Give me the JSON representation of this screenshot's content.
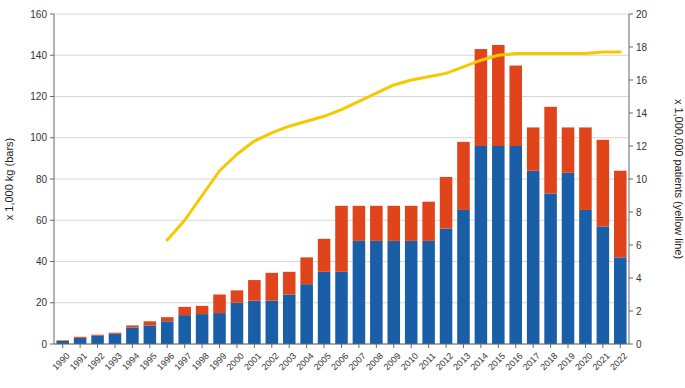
{
  "chart_data": {
    "type": "bar",
    "stacked": true,
    "grid": true,
    "x": [
      1990,
      1991,
      1992,
      1993,
      1994,
      1995,
      1996,
      1997,
      1998,
      1999,
      2000,
      2001,
      2002,
      2003,
      2004,
      2005,
      2006,
      2007,
      2008,
      2009,
      2010,
      2011,
      2012,
      2013,
      2014,
      2015,
      2016,
      2017,
      2018,
      2019,
      2020,
      2021,
      2022
    ],
    "xlim": [
      1989.5,
      2022.5
    ],
    "xticks": [
      1990,
      1991,
      1992,
      1993,
      1994,
      1995,
      1996,
      1997,
      1998,
      1999,
      2000,
      2001,
      2002,
      2003,
      2004,
      2005,
      2006,
      2007,
      2008,
      2009,
      2010,
      2011,
      2012,
      2013,
      2014,
      2015,
      2016,
      2017,
      2018,
      2019,
      2020,
      2021,
      2022
    ],
    "ylabel": "x 1,000 kg (bars)",
    "y2label": "x 1,000,000 patients (yellow line)",
    "ylim": [
      0,
      160
    ],
    "yticks": [
      0,
      20,
      40,
      60,
      80,
      100,
      120,
      140,
      160
    ],
    "y2lim": [
      0,
      20
    ],
    "y2ticks": [
      0,
      2,
      4,
      6,
      8,
      10,
      12,
      14,
      16,
      18,
      20
    ],
    "series": [
      {
        "type": "bar",
        "color": "#1a5ea8",
        "values": [
          1.5,
          3.0,
          4.0,
          5.0,
          8.0,
          9.0,
          11.0,
          14.0,
          14.5,
          15.0,
          20.0,
          21.0,
          21.0,
          24.0,
          29.0,
          35.0,
          35.0,
          50.0,
          50.0,
          50.0,
          50.0,
          50.0,
          56.0,
          65.0,
          96.0,
          96.0,
          96.0,
          84.0,
          73.0,
          83.0,
          65.0,
          57.0,
          42.0
        ]
      },
      {
        "type": "bar",
        "color": "#e0441a",
        "values": [
          0.3,
          0.5,
          0.5,
          0.5,
          1.0,
          2.0,
          2.0,
          4.0,
          4.0,
          9.0,
          6.0,
          10.0,
          13.5,
          11.0,
          13.0,
          16.0,
          32.0,
          17.0,
          17.0,
          17.0,
          17.0,
          19.0,
          25.0,
          33.0,
          47.0,
          49.0,
          39.0,
          21.0,
          42.0,
          22.0,
          40.0,
          42.0,
          42.0
        ]
      },
      {
        "type": "line",
        "axis": "y2",
        "color": "#f5c800",
        "values": [
          null,
          null,
          null,
          null,
          null,
          null,
          6.3,
          7.5,
          9.0,
          10.5,
          11.5,
          12.3,
          12.8,
          13.2,
          13.5,
          13.8,
          14.2,
          14.7,
          15.2,
          15.7,
          16.0,
          16.2,
          16.4,
          16.8,
          17.2,
          17.5,
          17.6,
          17.6,
          17.6,
          17.6,
          17.6,
          17.7,
          17.7
        ]
      }
    ]
  }
}
